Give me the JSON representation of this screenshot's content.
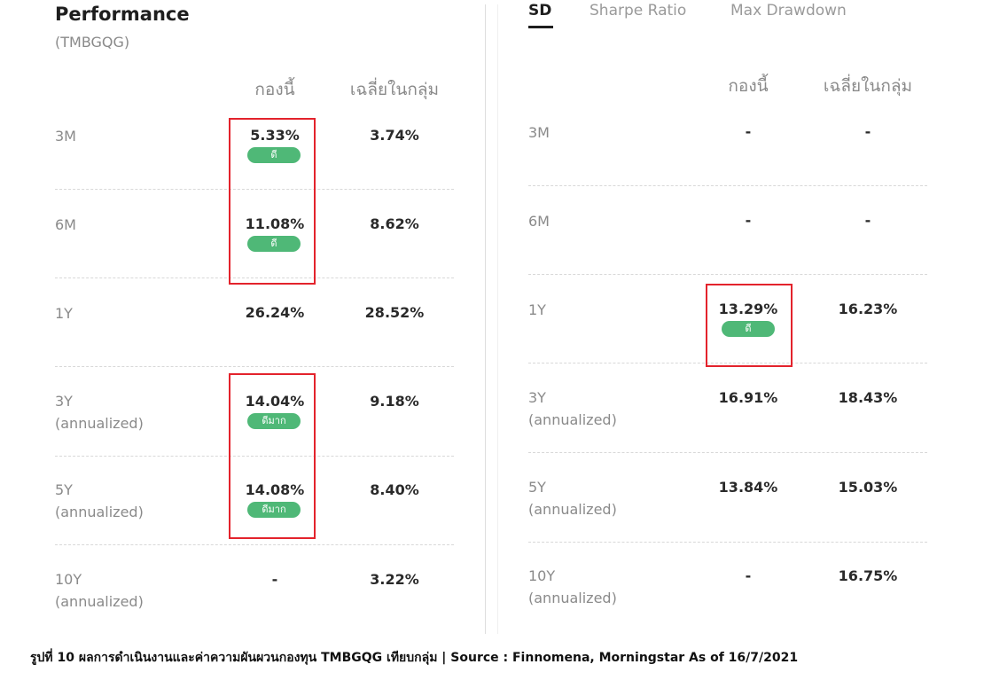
{
  "left": {
    "title": "Performance",
    "subtitle": "(TMBGQG)",
    "col_fund": "กองนี้",
    "col_avg": "เฉลี่ยในกลุ่ม",
    "rows": [
      {
        "period": "3M",
        "note": "",
        "fund": "5.33%",
        "avg": "3.74%",
        "badge": "ดี"
      },
      {
        "period": "6M",
        "note": "",
        "fund": "11.08%",
        "avg": "8.62%",
        "badge": "ดี"
      },
      {
        "period": "1Y",
        "note": "",
        "fund": "26.24%",
        "avg": "28.52%",
        "badge": ""
      },
      {
        "period": "3Y",
        "note": "(annualized)",
        "fund": "14.04%",
        "avg": "9.18%",
        "badge": "ดีมาก"
      },
      {
        "period": "5Y",
        "note": "(annualized)",
        "fund": "14.08%",
        "avg": "8.40%",
        "badge": "ดีมาก"
      },
      {
        "period": "10Y",
        "note": "(annualized)",
        "fund": "-",
        "avg": "3.22%",
        "badge": ""
      }
    ]
  },
  "right": {
    "tabs": [
      "SD",
      "Sharpe Ratio",
      "Max Drawdown"
    ],
    "active_tab": "SD",
    "col_fund": "กองนี้",
    "col_avg": "เฉลี่ยในกลุ่ม",
    "rows": [
      {
        "period": "3M",
        "note": "",
        "fund": "-",
        "avg": "-",
        "badge": ""
      },
      {
        "period": "6M",
        "note": "",
        "fund": "-",
        "avg": "-",
        "badge": ""
      },
      {
        "period": "1Y",
        "note": "",
        "fund": "13.29%",
        "avg": "16.23%",
        "badge": "ดี"
      },
      {
        "period": "3Y",
        "note": "(annualized)",
        "fund": "16.91%",
        "avg": "18.43%",
        "badge": ""
      },
      {
        "period": "5Y",
        "note": "(annualized)",
        "fund": "13.84%",
        "avg": "15.03%",
        "badge": ""
      },
      {
        "period": "10Y",
        "note": "(annualized)",
        "fund": "-",
        "avg": "16.75%",
        "badge": ""
      }
    ]
  },
  "caption": "รูปที่ 10 ผลการดำเนินงานและค่าความผันผวนกองทุน TMBGQG เทียบกลุ่ม | Source : Finnomena, Morningstar As of 16/7/2021",
  "colors": {
    "badge_green": "#4fb877",
    "highlight_red": "#e3232c",
    "label_gray": "#8a8a8a",
    "value_dark": "#2a2a2a"
  }
}
